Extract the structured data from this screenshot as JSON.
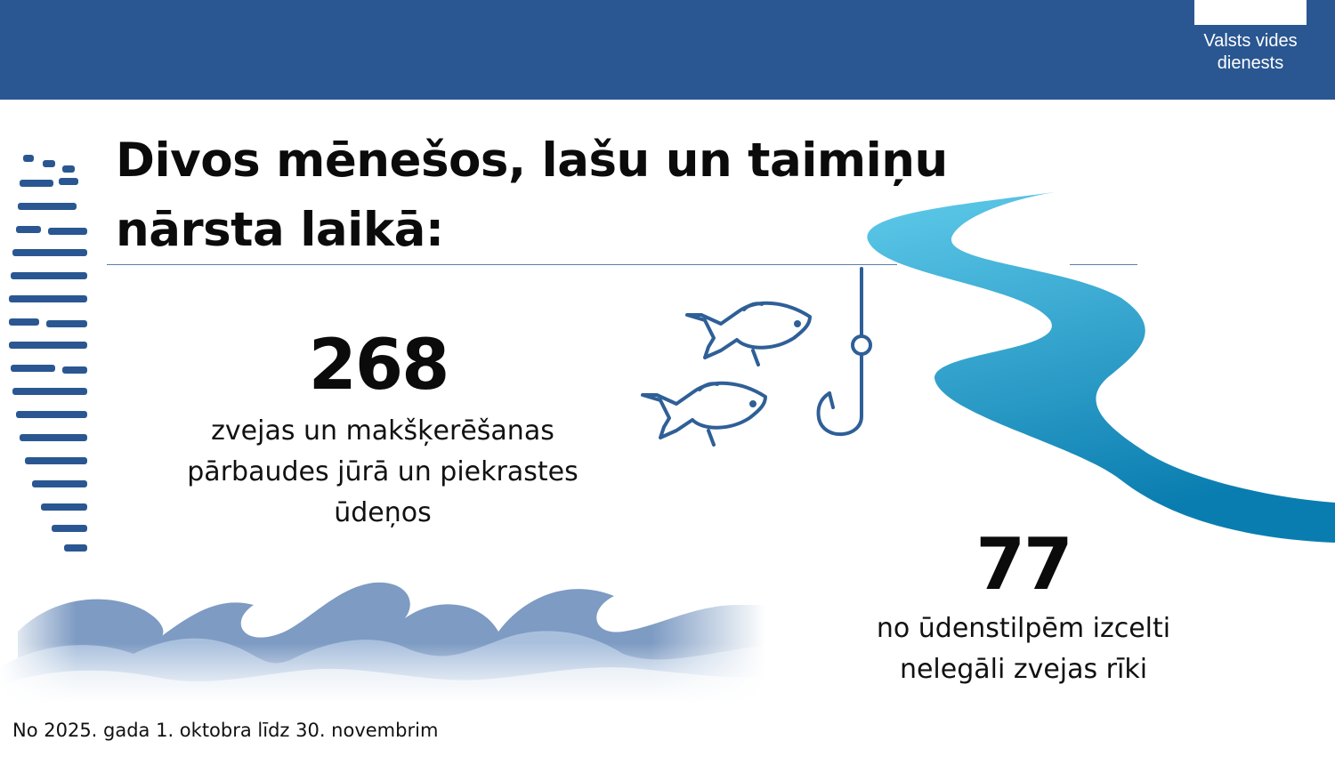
{
  "header": {
    "logo_box": "",
    "brand_line1": "Valsts vides",
    "brand_line2": "dienests",
    "bar_color": "#2a5791"
  },
  "headline": {
    "line1": "Divos mēnešos, lašu un taimiņu",
    "line2": "nārsta laikā:"
  },
  "stats": [
    {
      "value": "268",
      "lines": [
        "zvejas un makšķerēšanas",
        "pārbaudes jūrā un piekrastes",
        "ūdeņos"
      ]
    },
    {
      "value": "77",
      "lines": [
        "no ūdenstilpēm izcelti",
        "nelegāli zvejas rīki"
      ]
    }
  ],
  "footnote": "No 2025. gada 1. oktobra līdz 30. novembrim",
  "icons": [
    "stripe-pattern-icon",
    "fish-icon",
    "fishing-hook-icon",
    "river-icon",
    "sea-waves-icon"
  ],
  "colors": {
    "accent_blue": "#2a5791",
    "river_light": "#59c4e6",
    "river_dark": "#0a7fb1",
    "wave_blue": "#6f8fb9"
  }
}
